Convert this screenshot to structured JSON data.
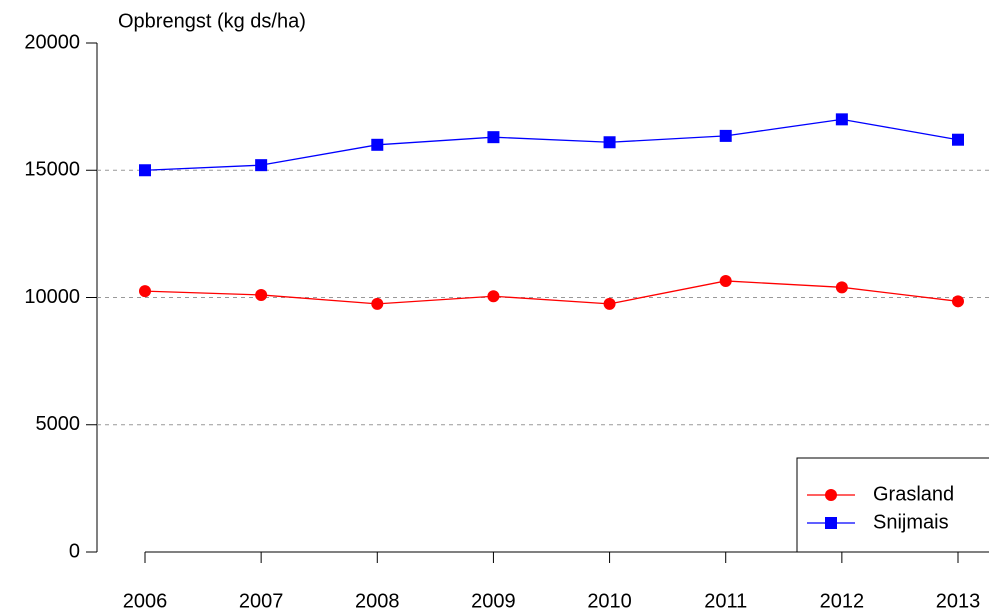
{
  "chart_data": {
    "type": "line",
    "ylabel": "Opbrengst (kg ds/ha)",
    "x": [
      2006,
      2007,
      2008,
      2009,
      2010,
      2011,
      2012,
      2013
    ],
    "xlim": [
      2006,
      2013
    ],
    "xticks": [
      2006,
      2007,
      2008,
      2009,
      2010,
      2011,
      2012,
      2013
    ],
    "ylim": [
      0,
      20000
    ],
    "yticks": [
      0,
      5000,
      10000,
      15000,
      20000
    ],
    "grid": true,
    "legend": "bottom right",
    "series": [
      {
        "name": "Grasland",
        "color": "#ff0000",
        "marker": "circle",
        "values": [
          10250,
          10100,
          9750,
          10050,
          9750,
          10650,
          10400,
          9850
        ]
      },
      {
        "name": "Snijmais",
        "color": "#0000ff",
        "marker": "square",
        "values": [
          15000,
          15200,
          16000,
          16300,
          16100,
          16350,
          17000,
          16200
        ]
      }
    ]
  }
}
